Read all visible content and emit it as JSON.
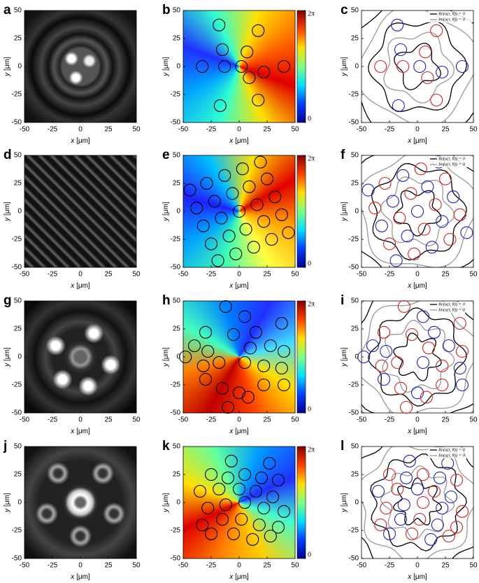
{
  "chart_data": [
    {
      "type": "image",
      "label": "a",
      "xlabel": {
        "symbol": "x",
        "unit": "[μm]"
      },
      "ylabel": {
        "symbol": "y",
        "unit": "[μm]"
      },
      "xlim": [
        -50,
        50
      ],
      "ylim": [
        -50,
        50
      ],
      "xticks": [
        -50,
        -25,
        0,
        25,
        50
      ],
      "yticks": [
        -50,
        -25,
        0,
        25,
        50
      ]
    },
    {
      "type": "phase",
      "label": "b",
      "xlabel": {
        "symbol": "x",
        "unit": "[μm]"
      },
      "ylabel": {
        "symbol": "y",
        "unit": "[μm]"
      },
      "xlim": [
        -50,
        50
      ],
      "ylim": [
        -50,
        50
      ],
      "xticks": [
        -50,
        -25,
        0,
        25,
        50
      ],
      "yticks": [
        -50,
        -25,
        0,
        25,
        50
      ],
      "clim": [
        0,
        6.2832
      ],
      "cticks": [
        {
          "value": 6.2832,
          "label": "2π"
        },
        0
      ],
      "x": [
        -18,
        17,
        -15,
        7,
        -33,
        -13,
        2,
        22,
        40,
        9,
        17,
        -17
      ],
      "y": [
        37,
        32,
        15,
        13,
        0,
        0,
        0,
        -5,
        0,
        -10,
        -30,
        -35
      ]
    },
    {
      "type": "contour",
      "label": "c",
      "xlabel": {
        "symbol": "x",
        "unit": "[μm]"
      },
      "ylabel": {
        "symbol": "y",
        "unit": "[μm]"
      },
      "xlim": [
        -50,
        50
      ],
      "ylim": [
        -50,
        50
      ],
      "xticks": [
        -50,
        -25,
        0,
        25,
        50
      ],
      "yticks": [
        -50,
        -25,
        0,
        25,
        50
      ],
      "legend_position": "upper right",
      "legend": [
        {
          "name": "Re(u(r, θ)) = 0",
          "color": "#000000"
        },
        {
          "name": "Im(u(r, θ)) = 0",
          "color": "#999999"
        }
      ],
      "x": [
        -18,
        17,
        -15,
        7,
        -33,
        -13,
        2,
        22,
        40,
        9,
        17,
        -17
      ],
      "y": [
        37,
        32,
        15,
        13,
        0,
        0,
        0,
        -5,
        0,
        -10,
        -30,
        -35
      ],
      "colors": [
        "#1f1fd0",
        "#e02020",
        "#1f1fd0",
        "#e02020",
        "#e02020",
        "#e02020",
        "#1f1fd0",
        "#1f1fd0",
        "#1f1fd0",
        "#e02020",
        "#e02020",
        "#1f1fd0"
      ]
    },
    {
      "type": "image",
      "label": "d",
      "xlabel": {
        "symbol": "x",
        "unit": "[μm]"
      },
      "ylabel": {
        "symbol": "y",
        "unit": "[μm]"
      },
      "xlim": [
        -50,
        50
      ],
      "ylim": [
        -50,
        50
      ],
      "xticks": [
        -50,
        -25,
        0,
        25,
        50
      ],
      "yticks": [
        -50,
        -25,
        0,
        25,
        50
      ]
    },
    {
      "type": "phase",
      "label": "e",
      "xlabel": {
        "symbol": "x",
        "unit": "[μm]"
      },
      "ylabel": {
        "symbol": "y",
        "unit": "[μm]"
      },
      "xlim": [
        -50,
        50
      ],
      "ylim": [
        -50,
        50
      ],
      "xticks": [
        -50,
        -25,
        0,
        25,
        50
      ],
      "yticks": [
        -50,
        -25,
        0,
        25,
        50
      ],
      "clim": [
        0,
        6.2832
      ],
      "cticks": [
        {
          "value": 6.2832,
          "label": "2π"
        },
        0
      ],
      "x": [
        -19,
        -3,
        13,
        29,
        44,
        -25,
        -9,
        6,
        22,
        38,
        -32,
        -16,
        0,
        16,
        32,
        -38,
        -22,
        -6,
        9,
        25,
        -44,
        -29,
        -13,
        3,
        19
      ],
      "y": [
        -44,
        -38,
        -32,
        -25,
        -19,
        -29,
        -22,
        -16,
        -9,
        -3,
        -13,
        -6,
        0,
        6,
        13,
        3,
        9,
        16,
        22,
        29,
        19,
        25,
        32,
        38,
        44
      ]
    },
    {
      "type": "contour",
      "label": "f",
      "xlabel": {
        "symbol": "x",
        "unit": "[μm]"
      },
      "ylabel": {
        "symbol": "y",
        "unit": "[μm]"
      },
      "xlim": [
        -50,
        50
      ],
      "ylim": [
        -50,
        50
      ],
      "xticks": [
        -50,
        -25,
        0,
        25,
        50
      ],
      "yticks": [
        -50,
        -25,
        0,
        25,
        50
      ],
      "legend_position": "upper right",
      "legend": [
        {
          "name": "Re(u(r, θ)) = 0",
          "color": "#000000"
        },
        {
          "name": "Im(u(r, θ)) = 0",
          "color": "#999999"
        }
      ],
      "x": [
        -19,
        -3,
        13,
        29,
        44,
        -25,
        -9,
        6,
        22,
        38,
        -32,
        -16,
        0,
        16,
        32,
        -38,
        -22,
        -6,
        9,
        25,
        -44,
        -29,
        -13,
        3,
        19
      ],
      "y": [
        -44,
        -38,
        -32,
        -25,
        -19,
        -29,
        -22,
        -16,
        -9,
        -3,
        -13,
        -6,
        0,
        6,
        13,
        3,
        9,
        16,
        22,
        29,
        19,
        25,
        32,
        38,
        44
      ],
      "colors": [
        "#1f1fd0",
        "#e02020",
        "#1f1fd0",
        "#e02020",
        "#1f1fd0",
        "#e02020",
        "#1f1fd0",
        "#e02020",
        "#1f1fd0",
        "#e02020",
        "#1f1fd0",
        "#e02020",
        "#1f1fd0",
        "#e02020",
        "#1f1fd0",
        "#e02020",
        "#1f1fd0",
        "#e02020",
        "#1f1fd0",
        "#e02020",
        "#1f1fd0",
        "#e02020",
        "#1f1fd0",
        "#e02020",
        "#1f1fd0"
      ]
    },
    {
      "type": "image",
      "label": "g",
      "xlabel": {
        "symbol": "x",
        "unit": "[μm]"
      },
      "ylabel": {
        "symbol": "y",
        "unit": "[μm]"
      },
      "xlim": [
        -50,
        50
      ],
      "ylim": [
        -50,
        50
      ],
      "xticks": [
        -50,
        -25,
        0,
        25,
        50
      ],
      "yticks": [
        -50,
        -25,
        0,
        25,
        50
      ]
    },
    {
      "type": "phase",
      "label": "h",
      "xlabel": {
        "symbol": "x",
        "unit": "[μm]"
      },
      "ylabel": {
        "symbol": "y",
        "unit": "[μm]"
      },
      "xlim": [
        -50,
        50
      ],
      "ylim": [
        -50,
        50
      ],
      "xticks": [
        -50,
        -25,
        0,
        25,
        50
      ],
      "yticks": [
        -50,
        -25,
        0,
        25,
        50
      ],
      "clim": [
        0,
        6.2832
      ],
      "cticks": [
        {
          "value": 6.2832,
          "label": "2π"
        },
        0
      ],
      "x": [
        -12,
        5,
        38,
        -30,
        -40,
        -5,
        15,
        -28,
        -48,
        10,
        28,
        40,
        -18,
        -32,
        5,
        22,
        38,
        -30,
        -15,
        0,
        22,
        40,
        -10,
        8
      ],
      "y": [
        45,
        36,
        30,
        22,
        10,
        20,
        22,
        5,
        0,
        8,
        10,
        5,
        -5,
        -8,
        -5,
        -8,
        -10,
        -20,
        -28,
        -32,
        -25,
        -25,
        -45,
        -36
      ]
    },
    {
      "type": "contour",
      "label": "i",
      "xlabel": {
        "symbol": "x",
        "unit": "[μm]"
      },
      "ylabel": {
        "symbol": "y",
        "unit": "[μm]"
      },
      "xlim": [
        -50,
        50
      ],
      "ylim": [
        -50,
        50
      ],
      "xticks": [
        -50,
        -25,
        0,
        25,
        50
      ],
      "yticks": [
        -50,
        -25,
        0,
        25,
        50
      ],
      "legend_position": "upper right",
      "legend": [
        {
          "name": "Re(u(r, θ)) = 0",
          "color": "#000000"
        },
        {
          "name": "Im(u(r, θ)) = 0",
          "color": "#999999"
        }
      ],
      "x": [
        -12,
        5,
        38,
        -30,
        -40,
        -5,
        15,
        -28,
        -48,
        10,
        28,
        40,
        -18,
        -32,
        5,
        22,
        38,
        -30,
        -15,
        0,
        22,
        40,
        -10,
        8
      ],
      "y": [
        45,
        36,
        30,
        22,
        10,
        20,
        22,
        5,
        0,
        8,
        10,
        5,
        -5,
        -8,
        -5,
        -8,
        -10,
        -20,
        -28,
        -32,
        -25,
        -25,
        -45,
        -36
      ],
      "colors": [
        "#e02020",
        "#1f1fd0",
        "#e02020",
        "#e02020",
        "#1f1fd0",
        "#e02020",
        "#1f1fd0",
        "#1f1fd0",
        "#1f1fd0",
        "#e02020",
        "#1f1fd0",
        "#e02020",
        "#e02020",
        "#e02020",
        "#1f1fd0",
        "#e02020",
        "#1f1fd0",
        "#1f1fd0",
        "#e02020",
        "#1f1fd0",
        "#e02020",
        "#1f1fd0",
        "#e02020",
        "#e02020"
      ]
    },
    {
      "type": "image",
      "label": "j",
      "xlabel": {
        "symbol": "x",
        "unit": "[μm]"
      },
      "ylabel": {
        "symbol": "y",
        "unit": "[μm]"
      },
      "xlim": [
        -50,
        50
      ],
      "ylim": [
        -50,
        50
      ],
      "xticks": [
        -50,
        -25,
        0,
        25,
        50
      ],
      "yticks": [
        -50,
        -25,
        0,
        25,
        50
      ]
    },
    {
      "type": "phase",
      "label": "k",
      "xlabel": {
        "symbol": "x",
        "unit": "[μm]"
      },
      "ylabel": {
        "symbol": "y",
        "unit": "[μm]"
      },
      "xlim": [
        -50,
        50
      ],
      "ylim": [
        -50,
        50
      ],
      "xticks": [
        -50,
        -25,
        0,
        25,
        50
      ],
      "yticks": [
        -50,
        -25,
        0,
        25,
        50
      ],
      "clim": [
        0,
        6.2832
      ],
      "cticks": [
        {
          "value": 6.2832,
          "label": "2π"
        },
        0
      ],
      "x": [
        -7,
        27,
        -25,
        -10,
        5,
        20,
        35,
        -35,
        -18,
        0,
        15,
        30,
        -28,
        -12,
        5,
        22,
        40,
        -33,
        -15,
        2,
        18,
        35,
        -25,
        -5,
        12,
        28
      ],
      "y": [
        37,
        35,
        25,
        22,
        25,
        22,
        20,
        10,
        12,
        12,
        10,
        5,
        -5,
        -2,
        0,
        -5,
        -8,
        -20,
        -15,
        -15,
        -20,
        -22,
        -28,
        -28,
        -33,
        -30
      ]
    },
    {
      "type": "contour",
      "label": "l",
      "xlabel": {
        "symbol": "x",
        "unit": "[μm]"
      },
      "ylabel": {
        "symbol": "y",
        "unit": "[μm]"
      },
      "xlim": [
        -50,
        50
      ],
      "ylim": [
        -50,
        50
      ],
      "xticks": [
        -50,
        -25,
        0,
        25,
        50
      ],
      "yticks": [
        -50,
        -25,
        0,
        25,
        50
      ],
      "legend_position": "upper right",
      "legend": [
        {
          "name": "Re(u(r, θ)) = 0",
          "color": "#000000"
        },
        {
          "name": "Im(u(r, θ)) = 0",
          "color": "#999999"
        }
      ],
      "x": [
        -7,
        27,
        -25,
        -10,
        5,
        20,
        35,
        -35,
        -18,
        0,
        15,
        30,
        -28,
        -12,
        5,
        22,
        40,
        -33,
        -15,
        2,
        18,
        35,
        -25,
        -5,
        12,
        28
      ],
      "y": [
        37,
        35,
        25,
        22,
        25,
        22,
        20,
        10,
        12,
        12,
        10,
        5,
        -5,
        -2,
        0,
        -5,
        -8,
        -20,
        -15,
        -15,
        -20,
        -22,
        -28,
        -28,
        -33,
        -30
      ],
      "colors": [
        "#1f1fd0",
        "#1f1fd0",
        "#e02020",
        "#1f1fd0",
        "#e02020",
        "#1f1fd0",
        "#e02020",
        "#1f1fd0",
        "#e02020",
        "#1f1fd0",
        "#e02020",
        "#1f1fd0",
        "#e02020",
        "#1f1fd0",
        "#e02020",
        "#1f1fd0",
        "#e02020",
        "#e02020",
        "#1f1fd0",
        "#e02020",
        "#1f1fd0",
        "#e02020",
        "#1f1fd0",
        "#e02020",
        "#1f1fd0",
        "#e02020"
      ]
    }
  ]
}
